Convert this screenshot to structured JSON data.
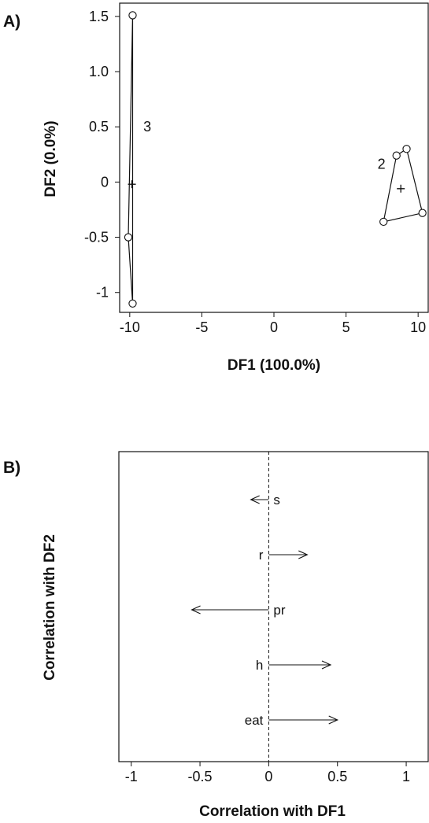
{
  "chart_data": [
    {
      "panel_label": "A)",
      "type": "scatter",
      "title": "",
      "xlabel": "DF1 (100.0%)",
      "ylabel": "DF2 (0.0%)",
      "xlim": [
        -10.7,
        10.7
      ],
      "ylim": [
        -1.18,
        1.62
      ],
      "xticks": [
        -10,
        -5,
        0,
        5,
        10
      ],
      "xtick_labels": [
        "-10",
        "-5",
        "0",
        "5",
        "10"
      ],
      "yticks": [
        -1,
        -0.5,
        0,
        0.5,
        1.0,
        1.5
      ],
      "ytick_labels": [
        "-1",
        "-0.5",
        "0",
        "0.5",
        "1.0",
        "1.5"
      ],
      "grid": false,
      "groups": [
        {
          "label": "3",
          "points": [
            [
              -9.8,
              1.51
            ],
            [
              -10.1,
              -0.5
            ],
            [
              -9.8,
              -1.1
            ]
          ],
          "centroid": [
            -9.85,
            -0.02
          ]
        },
        {
          "label": "2",
          "points": [
            [
              7.6,
              -0.36
            ],
            [
              8.5,
              0.24
            ],
            [
              9.2,
              0.3
            ],
            [
              10.3,
              -0.28
            ]
          ],
          "centroid": [
            8.8,
            -0.06
          ]
        }
      ]
    },
    {
      "panel_label": "B)",
      "type": "vector",
      "title": "",
      "xlabel": "Correlation with DF1",
      "ylabel": "Correlation with DF2",
      "xlim": [
        -1.09,
        1.16
      ],
      "xticks": [
        -1,
        -0.5,
        0,
        0.5,
        1
      ],
      "xtick_labels": [
        "-1",
        "-0.5",
        "0",
        "0.5",
        "1"
      ],
      "reference_line_x": 0,
      "grid": false,
      "variables": [
        {
          "name": "s",
          "df1": -0.13
        },
        {
          "name": "r",
          "df1": 0.28
        },
        {
          "name": "pr",
          "df1": -0.56
        },
        {
          "name": "h",
          "df1": 0.45
        },
        {
          "name": "eat",
          "df1": 0.5
        }
      ]
    }
  ]
}
